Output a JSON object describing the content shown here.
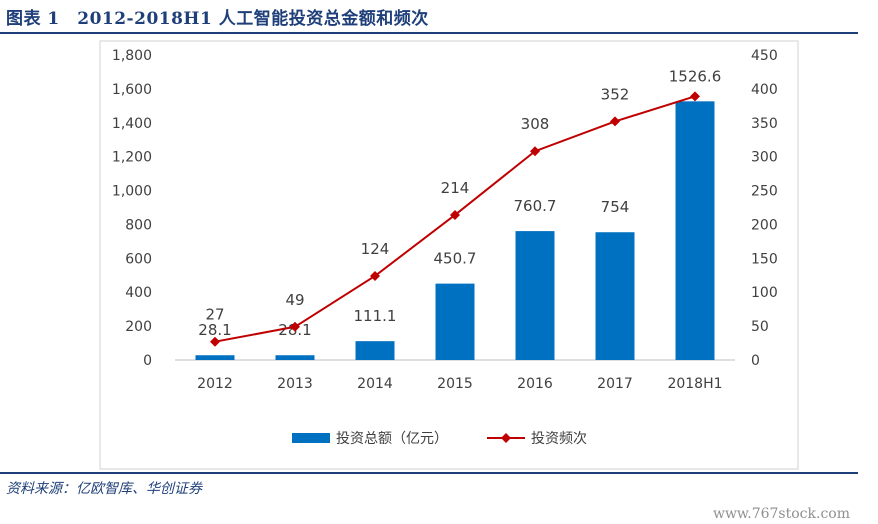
{
  "header": {
    "title": "图表 1　2012-2018H1 人工智能投资总金额和频次"
  },
  "footer": {
    "source": "资料来源：亿欧智库、华创证券",
    "watermark": "www.767stock.com"
  },
  "chart_data": {
    "type": "bar",
    "categories": [
      "2012",
      "2013",
      "2014",
      "2015",
      "2016",
      "2017",
      "2018H1"
    ],
    "series": [
      {
        "name": "投资总额（亿元）",
        "type": "bar",
        "axis": "left",
        "color": "#0070c0",
        "values": [
          28.1,
          28.1,
          111.1,
          450.7,
          760.7,
          754,
          1526.6
        ],
        "labels": [
          "28.1",
          "28.1",
          "111.1",
          "450.7",
          "760.7",
          "754",
          "1526.6"
        ]
      },
      {
        "name": "投资频次",
        "type": "line",
        "axis": "right",
        "color": "#c00000",
        "values": [
          27,
          49,
          124,
          214,
          308,
          352,
          389
        ],
        "labels": [
          "27",
          "49",
          "124",
          "214",
          "308",
          "352",
          ""
        ]
      }
    ],
    "left_axis": {
      "min": 0,
      "max": 1800,
      "step": 200,
      "tick_labels": [
        "0",
        "200",
        "400",
        "600",
        "800",
        "1,000",
        "1,200",
        "1,400",
        "1,600",
        "1,800"
      ]
    },
    "right_axis": {
      "min": 0,
      "max": 450,
      "step": 50,
      "tick_labels": [
        "0",
        "50",
        "100",
        "150",
        "200",
        "250",
        "300",
        "350",
        "400",
        "450"
      ]
    },
    "grid": false,
    "legend_position": "bottom"
  }
}
